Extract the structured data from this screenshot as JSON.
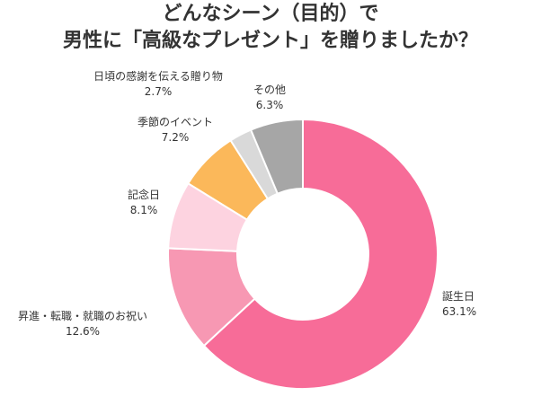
{
  "chart_data": {
    "type": "pie",
    "donut": true,
    "title_lines": [
      "どんなシーン（目的）で",
      "男性に「高級なプレゼント」を贈りましたか？"
    ],
    "slices": [
      {
        "name": "誕生日",
        "value": 63.1,
        "value_label": "63.1%",
        "color": "#f76c98"
      },
      {
        "name": "昇進・転職・就職のお祝い",
        "value": 12.6,
        "value_label": "12.6%",
        "color": "#f798b3"
      },
      {
        "name": "記念日",
        "value": 8.1,
        "value_label": "8.1%",
        "color": "#fdd3e0"
      },
      {
        "name": "季節のイベント",
        "value": 7.2,
        "value_label": "7.2%",
        "color": "#fbb85a"
      },
      {
        "name": "日頃の感謝を伝える贈り物",
        "value": 2.7,
        "value_label": "2.7%",
        "color": "#d9d9d9"
      },
      {
        "name": "その他",
        "value": 6.3,
        "value_label": "6.3%",
        "color": "#a6a6a6"
      }
    ]
  }
}
